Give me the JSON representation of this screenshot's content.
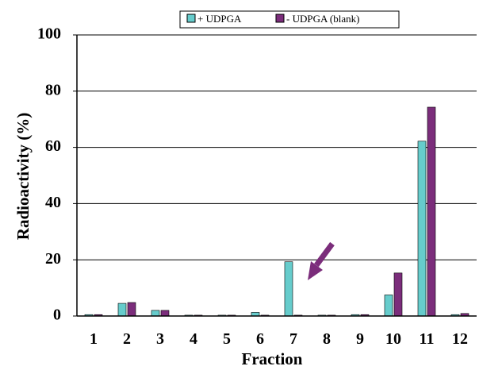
{
  "chart_data": {
    "type": "bar",
    "categories": [
      "1",
      "2",
      "3",
      "4",
      "5",
      "6",
      "7",
      "8",
      "9",
      "10",
      "11",
      "12"
    ],
    "series": [
      {
        "name": "+ UDPGA",
        "color": "#66CCCC",
        "values": [
          0.5,
          4.5,
          2.0,
          0.3,
          0.3,
          1.3,
          19.3,
          0.3,
          0.5,
          7.5,
          62.2,
          0.5
        ]
      },
      {
        "name": "- UDPGA (blank)",
        "color": "#7B2D7B",
        "values": [
          0.5,
          4.8,
          2.0,
          0.3,
          0.3,
          0.3,
          0.3,
          0.3,
          0.5,
          15.3,
          74.3,
          0.9
        ]
      }
    ],
    "xlabel": "Fraction",
    "ylabel": "Radioactivity (%)",
    "ylim": [
      0,
      100
    ],
    "yticks": [
      0,
      20,
      40,
      60,
      80,
      100
    ],
    "grid": "horizontal",
    "legend_position": "top-center",
    "annotation": {
      "type": "arrow",
      "points_to_category": "7",
      "color": "#7B2D7B"
    }
  }
}
